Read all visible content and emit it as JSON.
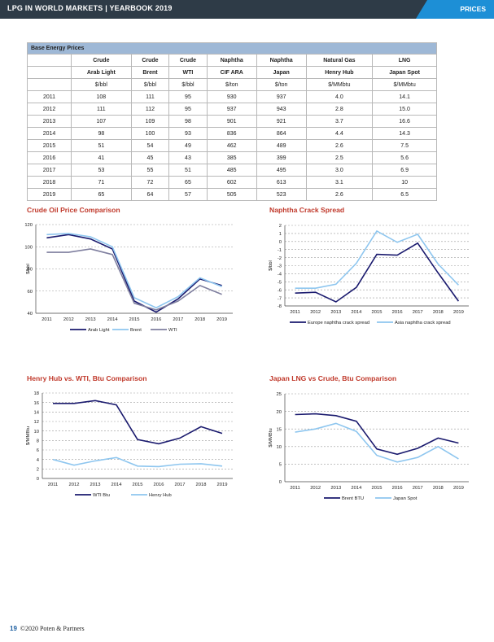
{
  "header": {
    "title": "LPG IN WORLD MARKETS  |  YEARBOOK 2019",
    "tab": "PRICES"
  },
  "table": {
    "caption": "Base Energy Prices",
    "head1": [
      "Crude",
      "Crude",
      "Crude",
      "Naphtha",
      "Naphtha",
      "Natural Gas",
      "LNG"
    ],
    "head2": [
      "Arab Light",
      "Brent",
      "WTI",
      "CIF ARA",
      "Japan",
      "Henry Hub",
      "Japan Spot"
    ],
    "units": [
      "$/bbl",
      "$/bbl",
      "$/bbl",
      "$/ton",
      "$/ton",
      "$/MMbtu",
      "$/MMbtu"
    ],
    "rows": [
      {
        "year": "2011",
        "v": [
          "108",
          "111",
          "95",
          "930",
          "937",
          "4.0",
          "14.1"
        ]
      },
      {
        "year": "2012",
        "v": [
          "111",
          "112",
          "95",
          "937",
          "943",
          "2.8",
          "15.0"
        ]
      },
      {
        "year": "2013",
        "v": [
          "107",
          "109",
          "98",
          "901",
          "921",
          "3.7",
          "16.6"
        ]
      },
      {
        "year": "2014",
        "v": [
          "98",
          "100",
          "93",
          "836",
          "864",
          "4.4",
          "14.3"
        ]
      },
      {
        "year": "2015",
        "v": [
          "51",
          "54",
          "49",
          "462",
          "489",
          "2.6",
          "7.5"
        ]
      },
      {
        "year": "2016",
        "v": [
          "41",
          "45",
          "43",
          "385",
          "399",
          "2.5",
          "5.6"
        ]
      },
      {
        "year": "2017",
        "v": [
          "53",
          "55",
          "51",
          "485",
          "495",
          "3.0",
          "6.9"
        ]
      },
      {
        "year": "2018",
        "v": [
          "71",
          "72",
          "65",
          "602",
          "613",
          "3.1",
          "10"
        ]
      },
      {
        "year": "2019",
        "v": [
          "65",
          "64",
          "57",
          "505",
          "523",
          "2.6",
          "6.5"
        ]
      }
    ]
  },
  "chart_data": [
    {
      "type": "line",
      "title": "Crude Oil Price Comparison",
      "ylabel": "$/bbl",
      "ylim": [
        40,
        120
      ],
      "yticks": [
        40,
        60,
        80,
        100,
        120
      ],
      "x": [
        "2011",
        "2012",
        "2013",
        "2014",
        "2015",
        "2016",
        "2017",
        "2018",
        "2019"
      ],
      "legend": "bottom",
      "series": [
        {
          "name": "Arab Light",
          "color": "#1a1a6e",
          "values": [
            108,
            111,
            107,
            98,
            51,
            41,
            53,
            71,
            65
          ]
        },
        {
          "name": "Brent",
          "color": "#8ec6ef",
          "values": [
            111,
            112,
            109,
            100,
            54,
            45,
            55,
            72,
            64
          ]
        },
        {
          "name": "WTI",
          "color": "#7f7f9f",
          "values": [
            95,
            95,
            98,
            93,
            49,
            43,
            51,
            65,
            57
          ]
        }
      ]
    },
    {
      "type": "line",
      "title": "Naphtha Crack Spread",
      "ylabel": "$/bbl",
      "ylim": [
        -8,
        2
      ],
      "yticks": [
        -8,
        -7,
        -6,
        -5,
        -4,
        -3,
        -2,
        -1,
        0,
        1,
        2
      ],
      "x": [
        "2011",
        "2012",
        "2013",
        "2014",
        "2015",
        "2016",
        "2017",
        "2018",
        "2019"
      ],
      "legend": "bottom",
      "series": [
        {
          "name": "Europe naphtha crack spread",
          "color": "#1a1a6e",
          "values": [
            -6.4,
            -6.3,
            -7.5,
            -5.7,
            -1.6,
            -1.7,
            -0.2,
            -3.9,
            -7.4
          ]
        },
        {
          "name": "Asia naphtha crack spread",
          "color": "#8ec6ef",
          "values": [
            -5.8,
            -5.8,
            -5.3,
            -2.7,
            1.3,
            -0.1,
            0.9,
            -2.8,
            -5.4
          ]
        }
      ]
    },
    {
      "type": "line",
      "title": "Henry Hub vs. WTI, Btu Comparison",
      "ylabel": "$/MMBtu",
      "ylim": [
        0,
        18
      ],
      "yticks": [
        0,
        2,
        4,
        6,
        8,
        10,
        12,
        14,
        16,
        18
      ],
      "x": [
        "2011",
        "2012",
        "2013",
        "2014",
        "2015",
        "2016",
        "2017",
        "2018",
        "2019"
      ],
      "legend": "bottom",
      "series": [
        {
          "name": "WTI Btu",
          "color": "#1a1a6e",
          "values": [
            15.8,
            15.8,
            16.4,
            15.5,
            8.2,
            7.3,
            8.5,
            10.9,
            9.5
          ]
        },
        {
          "name": "Henry Hub",
          "color": "#8ec6ef",
          "values": [
            4.0,
            2.8,
            3.7,
            4.4,
            2.6,
            2.5,
            3.0,
            3.1,
            2.6
          ]
        }
      ]
    },
    {
      "type": "line",
      "title": "Japan LNG vs Crude, Btu Comparison",
      "ylabel": "$/MMBtu",
      "ylim": [
        0,
        25
      ],
      "yticks": [
        0,
        5,
        10,
        15,
        20,
        25
      ],
      "x": [
        "2011",
        "2012",
        "2013",
        "2014",
        "2015",
        "2016",
        "2017",
        "2018",
        "2019"
      ],
      "legend": "bottom",
      "series": [
        {
          "name": "Brent BTU",
          "color": "#1a1a6e",
          "values": [
            19.1,
            19.3,
            18.8,
            17.2,
            9.3,
            7.8,
            9.5,
            12.4,
            11.0
          ]
        },
        {
          "name": "Japan Spot",
          "color": "#8ec6ef",
          "values": [
            14.1,
            15.0,
            16.6,
            14.3,
            7.5,
            5.6,
            6.9,
            10,
            6.5
          ]
        }
      ]
    }
  ],
  "footer": {
    "page": "19",
    "copyright": "©2020 Poten & Partners"
  }
}
